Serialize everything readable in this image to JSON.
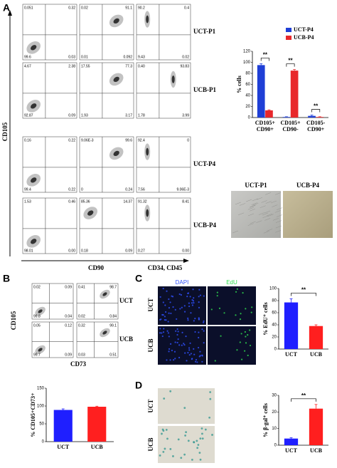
{
  "panels": [
    "A",
    "B",
    "C",
    "D"
  ],
  "flow_a": {
    "y_label": "CD105",
    "x_labels": [
      "CD90",
      "CD34, CD45"
    ],
    "rows": [
      {
        "label": "UCT-P1",
        "plots": [
          [
            "0.051",
            "0.32",
            "99.6",
            "0.03"
          ],
          [
            "0.02",
            "91.1",
            "0.01",
            "0.092"
          ],
          [
            "90.2",
            "0.4",
            "9.43",
            "0.02"
          ]
        ]
      },
      {
        "label": "UCB-P1",
        "plots": [
          [
            "4.67",
            "2.38",
            "92.87",
            "0.09"
          ],
          [
            "17.55",
            "77.3",
            "1.93",
            "3.17"
          ],
          [
            "0.40",
            "93.83",
            "1.78",
            "3.99"
          ]
        ]
      },
      {
        "label": "UCT-P4",
        "plots": [
          [
            "0.16",
            "0.22",
            "99.4",
            "0.22"
          ],
          [
            "9.06E-3",
            "99.6",
            "0",
            "0.24"
          ],
          [
            "92.4",
            "0",
            "7.56",
            "9.06E-3"
          ]
        ]
      },
      {
        "label": "UCB-P4",
        "plots": [
          [
            "1.53",
            "0.46",
            "98.01",
            "0.00"
          ],
          [
            "85.36",
            "14.37",
            "0.18",
            "0.09"
          ],
          [
            "91.32",
            "8.41",
            "0.27",
            "0.00"
          ]
        ]
      }
    ]
  },
  "images_a": [
    "UCT-P1",
    "UCB-P4"
  ],
  "flow_b": {
    "y_label": "CD105",
    "x_label": "CD73",
    "rows": [
      {
        "label": "UCT",
        "plots": [
          [
            "0.02",
            "0.09",
            "99.8",
            "0.04"
          ],
          [
            "0.41",
            "98.7",
            "0.02",
            "0.84"
          ]
        ]
      },
      {
        "label": "UCB",
        "plots": [
          [
            "0.05",
            "0.12",
            "99.7",
            "0.09"
          ],
          [
            "0.32",
            "99.1",
            "0.03",
            "0.51"
          ]
        ]
      }
    ]
  },
  "panel_c": {
    "columns": [
      "DAPI",
      "EdU"
    ],
    "rows": [
      "UCT",
      "UCB"
    ]
  },
  "panel_d": {
    "rows": [
      "UCT",
      "UCB"
    ]
  },
  "chart_data": [
    {
      "type": "bar",
      "y_label": "% cells",
      "categories": [
        "CD105+\nCD90+",
        "CD105+\nCD90-",
        "CD105-\nCD90+"
      ],
      "series": [
        {
          "name": "UCT-P4",
          "color": "#1f3fd6",
          "values": [
            95,
            1,
            3
          ],
          "errors": [
            2.5,
            0.5,
            1.5
          ]
        },
        {
          "name": "UCB-P4",
          "color": "#e8282b",
          "values": [
            13,
            85,
            1
          ],
          "errors": [
            1,
            2,
            0.5
          ]
        }
      ],
      "ylim": [
        0,
        120
      ],
      "yticks": [
        0,
        20,
        40,
        60,
        80,
        100,
        120
      ],
      "legend": "top-right",
      "annotations": [
        "**",
        "**",
        "**"
      ]
    },
    {
      "type": "bar",
      "y_label": "% CD105+CD73+",
      "categories": [
        "UCT",
        "UCB"
      ],
      "values": [
        89,
        98
      ],
      "errors": [
        3,
        1.5
      ],
      "colors": [
        "#1f1fff",
        "#ff1f1f"
      ],
      "ylim": [
        0,
        150
      ],
      "yticks": [
        0,
        50,
        100,
        150
      ],
      "annotations": []
    },
    {
      "type": "bar",
      "y_label": "% EdU⁺ cells",
      "categories": [
        "UCT",
        "UCB"
      ],
      "values": [
        77,
        38
      ],
      "errors": [
        6,
        2
      ],
      "colors": [
        "#1f1fff",
        "#ff1f1f"
      ],
      "ylim": [
        0,
        100
      ],
      "yticks": [
        0,
        20,
        40,
        60,
        80,
        100
      ],
      "annotations": [
        "**"
      ]
    },
    {
      "type": "bar",
      "y_label": "% β-gal⁺ cells",
      "categories": [
        "UCT",
        "UCB"
      ],
      "values": [
        4,
        22
      ],
      "errors": [
        0.5,
        2.5
      ],
      "colors": [
        "#1f1fff",
        "#ff1f1f"
      ],
      "ylim": [
        0,
        30
      ],
      "yticks": [
        0,
        10,
        20,
        30
      ],
      "annotations": [
        "**"
      ]
    }
  ]
}
